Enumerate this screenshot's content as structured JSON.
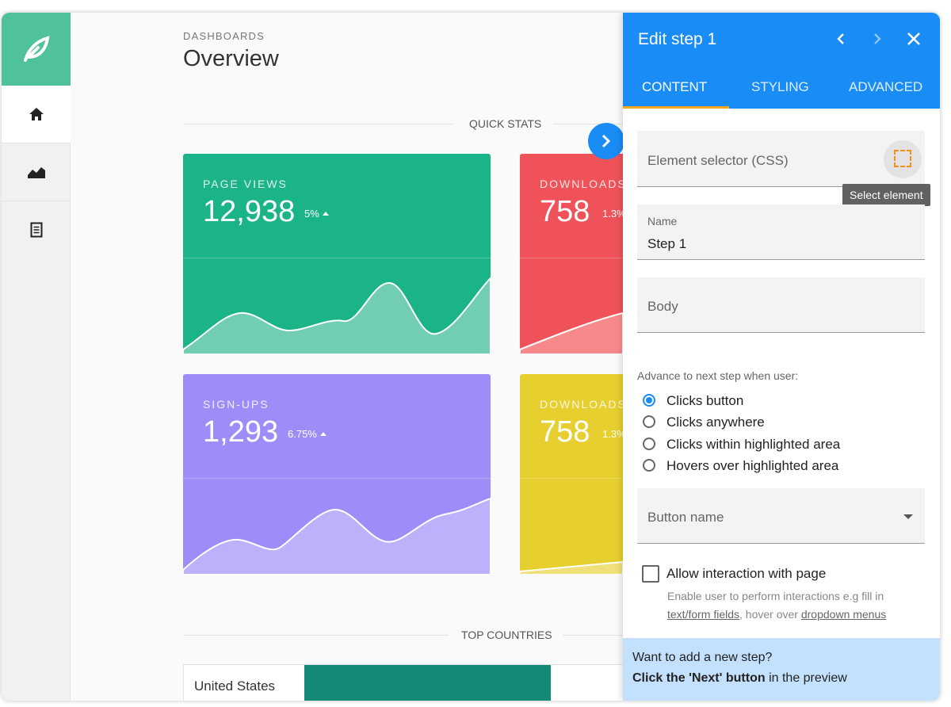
{
  "header": {
    "section": "DASHBOARDS",
    "title": "Overview"
  },
  "quick_stats": {
    "heading": "QUICK STATS",
    "cards": [
      {
        "label": "PAGE VIEWS",
        "value": "12,938",
        "change": "5%"
      },
      {
        "label": "DOWNLOADS",
        "value": "758",
        "change": "1.3%"
      },
      {
        "label": "SIGN-UPS",
        "value": "1,293",
        "change": "6.75%"
      },
      {
        "label": "DOWNLOADS",
        "value": "758",
        "change": "1.3%"
      }
    ]
  },
  "top_countries": {
    "heading": "TOP COUNTRIES",
    "rows": [
      {
        "country": "United States"
      }
    ]
  },
  "panel": {
    "title": "Edit step 1",
    "tabs": [
      "CONTENT",
      "STYLING",
      "ADVANCED"
    ],
    "selector_placeholder": "Element selector (CSS)",
    "tooltip": "Select element",
    "name_label": "Name",
    "name_value": "Step 1",
    "body_placeholder": "Body",
    "advance_label": "Advance to next step when user:",
    "advance_options": [
      "Clicks button",
      "Clicks anywhere",
      "Clicks within highlighted area",
      "Hovers over highlighted area"
    ],
    "button_name_placeholder": "Button name",
    "allow_label": "Allow interaction with page",
    "allow_help": [
      "Enable user to perform interactions e.g fill in",
      "text/form fields",
      ", hover over ",
      "dropdown menus"
    ],
    "footer": {
      "question": "Want to add a new step?",
      "hint_bold": "Click the 'Next' button",
      "hint_rest": " in the preview"
    }
  }
}
